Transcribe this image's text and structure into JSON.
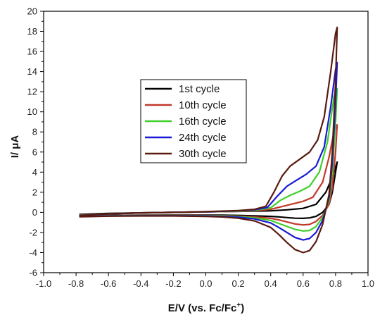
{
  "chart_data": {
    "type": "line",
    "xlabel": "E/V (vs. Fc/Fc",
    "xlabel_sup": "+",
    "xlabel_close": ")",
    "ylabel": "I/ μA",
    "xlim": [
      -1.0,
      1.0
    ],
    "ylim": [
      -6,
      20
    ],
    "xticks": [
      "-1.0",
      "-0.8",
      "-0.6",
      "-0.4",
      "-0.2",
      "0.0",
      "0.2",
      "0.4",
      "0.6",
      "0.8",
      "1.0"
    ],
    "yticks": [
      "-6",
      "-4",
      "-2",
      "0",
      "2",
      "4",
      "6",
      "8",
      "10",
      "12",
      "14",
      "16",
      "18",
      "20"
    ],
    "grid": false,
    "legend_position": "center",
    "series": [
      {
        "name": "1st cycle",
        "color": "#000000",
        "x": [
          -0.78,
          -0.6,
          -0.4,
          -0.2,
          0.0,
          0.2,
          0.3,
          0.4,
          0.5,
          0.6,
          0.68,
          0.74,
          0.78,
          0.8,
          0.81,
          0.8,
          0.78,
          0.76,
          0.72,
          0.68,
          0.64,
          0.6,
          0.55,
          0.5,
          0.45,
          0.4,
          0.3,
          0.2,
          0.1,
          0.0,
          -0.2,
          -0.4,
          -0.6,
          -0.78
        ],
        "y": [
          -0.2,
          -0.1,
          -0.05,
          0.0,
          0.05,
          0.1,
          0.12,
          0.15,
          0.25,
          0.4,
          0.8,
          2.0,
          3.5,
          4.5,
          5.0,
          4.0,
          2.0,
          0.8,
          0.0,
          -0.4,
          -0.55,
          -0.6,
          -0.58,
          -0.52,
          -0.45,
          -0.4,
          -0.35,
          -0.3,
          -0.28,
          -0.27,
          -0.27,
          -0.28,
          -0.3,
          -0.35
        ]
      },
      {
        "name": "10th cycle",
        "color": "#c0392b",
        "x": [
          -0.78,
          -0.6,
          -0.4,
          -0.2,
          0.0,
          0.2,
          0.3,
          0.4,
          0.5,
          0.6,
          0.66,
          0.72,
          0.76,
          0.79,
          0.81,
          0.8,
          0.78,
          0.76,
          0.72,
          0.68,
          0.64,
          0.6,
          0.55,
          0.5,
          0.45,
          0.4,
          0.3,
          0.2,
          0.1,
          0.0,
          -0.2,
          -0.4,
          -0.6,
          -0.78
        ],
        "y": [
          -0.25,
          -0.15,
          -0.05,
          0.0,
          0.05,
          0.1,
          0.15,
          0.3,
          0.7,
          1.1,
          1.5,
          3.0,
          5.5,
          8.0,
          8.7,
          6.0,
          2.5,
          0.8,
          -0.3,
          -0.9,
          -1.2,
          -1.25,
          -1.15,
          -0.95,
          -0.75,
          -0.6,
          -0.45,
          -0.38,
          -0.33,
          -0.3,
          -0.3,
          -0.3,
          -0.32,
          -0.38
        ]
      },
      {
        "name": "16th cycle",
        "color": "#3ecf2a",
        "x": [
          -0.78,
          -0.6,
          -0.4,
          -0.2,
          0.0,
          0.2,
          0.3,
          0.4,
          0.46,
          0.52,
          0.58,
          0.64,
          0.7,
          0.75,
          0.79,
          0.81,
          0.8,
          0.78,
          0.76,
          0.72,
          0.68,
          0.64,
          0.6,
          0.55,
          0.5,
          0.45,
          0.4,
          0.3,
          0.2,
          0.1,
          0.0,
          -0.2,
          -0.4,
          -0.6,
          -0.78
        ],
        "y": [
          -0.28,
          -0.15,
          -0.05,
          0.0,
          0.05,
          0.12,
          0.2,
          0.45,
          1.2,
          1.7,
          2.1,
          2.6,
          4.0,
          7.0,
          11.5,
          12.3,
          9.0,
          4.0,
          1.2,
          -0.5,
          -1.4,
          -1.8,
          -1.85,
          -1.7,
          -1.4,
          -1.1,
          -0.8,
          -0.55,
          -0.42,
          -0.36,
          -0.33,
          -0.32,
          -0.32,
          -0.34,
          -0.4
        ]
      },
      {
        "name": "24th cycle",
        "color": "#1a1ad6",
        "x": [
          -0.78,
          -0.6,
          -0.4,
          -0.2,
          0.0,
          0.2,
          0.3,
          0.38,
          0.44,
          0.5,
          0.56,
          0.62,
          0.68,
          0.73,
          0.77,
          0.8,
          0.81,
          0.8,
          0.78,
          0.76,
          0.72,
          0.68,
          0.64,
          0.6,
          0.55,
          0.5,
          0.45,
          0.4,
          0.3,
          0.2,
          0.1,
          0.0,
          -0.2,
          -0.4,
          -0.6,
          -0.78
        ],
        "y": [
          -0.3,
          -0.15,
          -0.05,
          0.0,
          0.05,
          0.15,
          0.25,
          0.5,
          1.6,
          2.6,
          3.2,
          3.8,
          4.6,
          6.5,
          10.5,
          14.2,
          14.9,
          11.0,
          5.0,
          1.5,
          -0.8,
          -2.0,
          -2.6,
          -2.75,
          -2.5,
          -2.0,
          -1.5,
          -1.05,
          -0.65,
          -0.48,
          -0.4,
          -0.36,
          -0.34,
          -0.34,
          -0.36,
          -0.42
        ]
      },
      {
        "name": "30th cycle",
        "color": "#5a1a10",
        "x": [
          -0.78,
          -0.6,
          -0.4,
          -0.2,
          0.0,
          0.2,
          0.3,
          0.37,
          0.42,
          0.47,
          0.52,
          0.58,
          0.64,
          0.69,
          0.73,
          0.77,
          0.8,
          0.81,
          0.8,
          0.78,
          0.76,
          0.72,
          0.68,
          0.64,
          0.6,
          0.55,
          0.5,
          0.45,
          0.4,
          0.3,
          0.2,
          0.1,
          0.0,
          -0.2,
          -0.4,
          -0.6,
          -0.78
        ],
        "y": [
          -0.32,
          -0.15,
          -0.05,
          0.0,
          0.07,
          0.18,
          0.3,
          0.6,
          2.0,
          3.6,
          4.6,
          5.3,
          6.0,
          7.2,
          9.5,
          14.0,
          17.8,
          18.4,
          13.0,
          6.0,
          1.8,
          -1.2,
          -2.9,
          -3.8,
          -4.0,
          -3.7,
          -3.0,
          -2.2,
          -1.5,
          -0.85,
          -0.58,
          -0.46,
          -0.4,
          -0.36,
          -0.36,
          -0.38,
          -0.44
        ]
      }
    ]
  }
}
